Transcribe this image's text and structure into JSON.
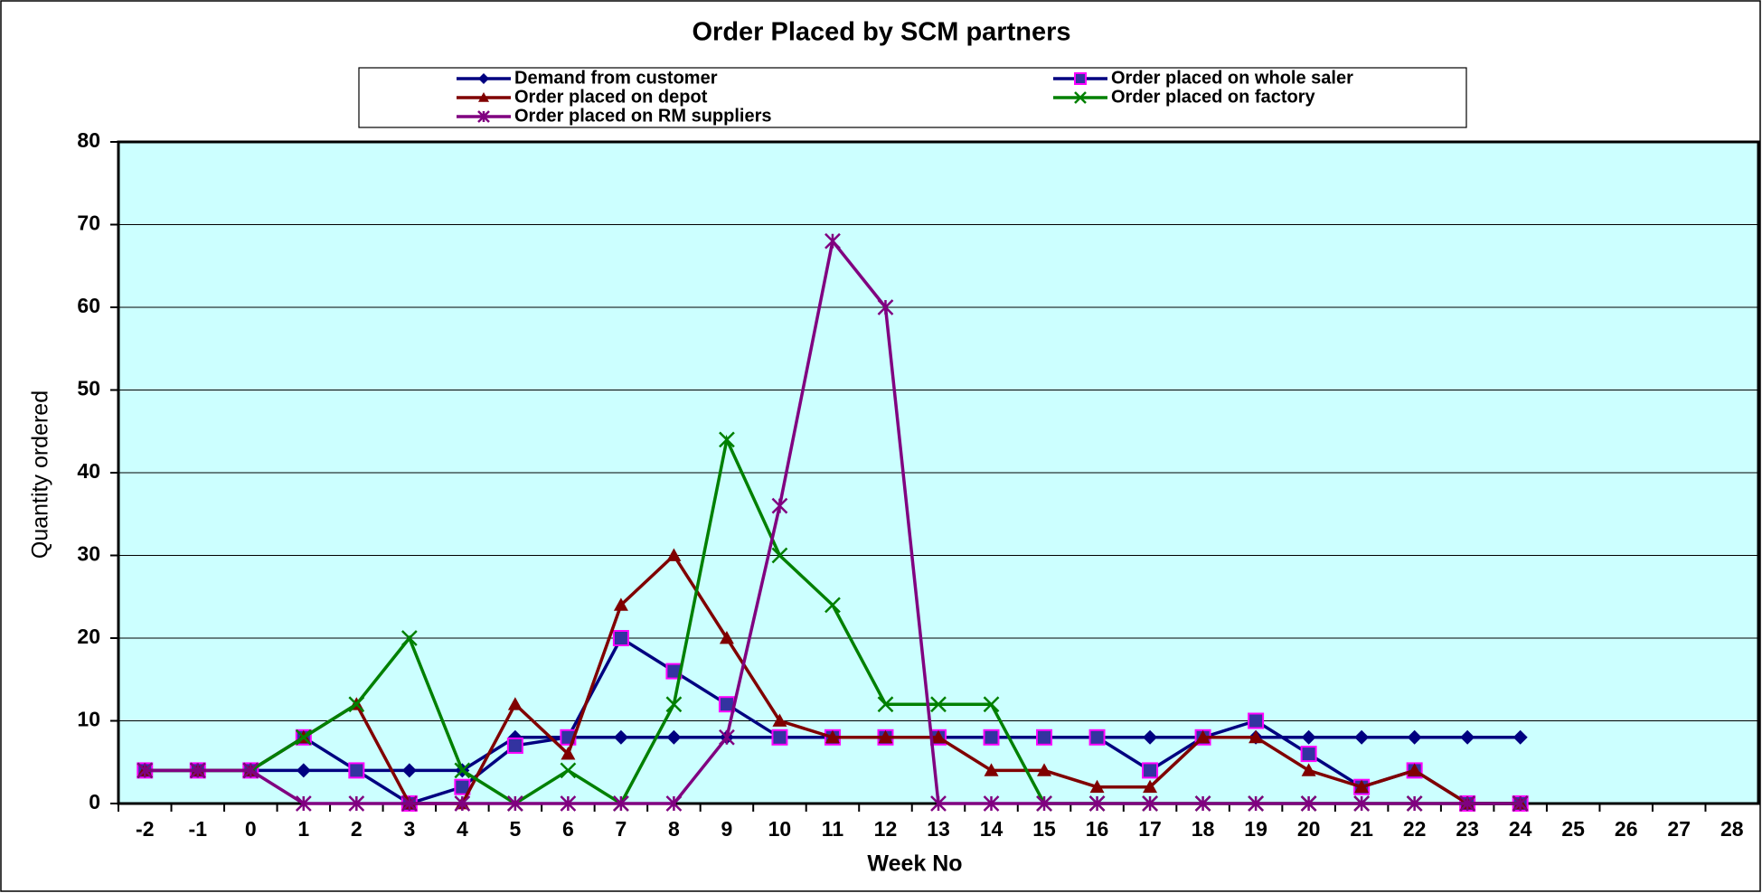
{
  "chart_data": {
    "type": "line",
    "title": "Order Placed by SCM partners",
    "x_label": "Week No",
    "y_label": "Quantity ordered",
    "categories": [
      "-2",
      "-1",
      "0",
      "1",
      "2",
      "3",
      "4",
      "5",
      "6",
      "7",
      "8",
      "9",
      "10",
      "11",
      "12",
      "13",
      "14",
      "15",
      "16",
      "17",
      "18",
      "19",
      "20",
      "21",
      "22",
      "23",
      "24",
      "25",
      "26",
      "27",
      "28"
    ],
    "ylim": [
      0,
      80
    ],
    "yticks": [
      0,
      10,
      20,
      30,
      40,
      50,
      60,
      70,
      80
    ],
    "grid": true,
    "background": "#ccffff",
    "series": [
      {
        "name": "Demand from customer",
        "color": "#000080",
        "marker": "diamond",
        "values": [
          4,
          4,
          4,
          4,
          4,
          4,
          4,
          8,
          8,
          8,
          8,
          8,
          8,
          8,
          8,
          8,
          8,
          8,
          8,
          8,
          8,
          8,
          8,
          8,
          8,
          8,
          8,
          null,
          null,
          null,
          null
        ]
      },
      {
        "name": "Order placed on whole saler",
        "color": "#000080",
        "marker": "square",
        "values": [
          4,
          4,
          4,
          8,
          4,
          0,
          2,
          7,
          8,
          20,
          16,
          12,
          8,
          8,
          8,
          8,
          8,
          8,
          8,
          4,
          8,
          10,
          6,
          2,
          4,
          0,
          0,
          null,
          null,
          null,
          null
        ]
      },
      {
        "name": "Order placed on depot",
        "color": "#800000",
        "marker": "triangle",
        "values": [
          4,
          4,
          4,
          8,
          12,
          0,
          0,
          12,
          6,
          24,
          30,
          20,
          10,
          8,
          8,
          8,
          4,
          4,
          2,
          2,
          8,
          8,
          4,
          2,
          4,
          0,
          0,
          null,
          null,
          null,
          null
        ]
      },
      {
        "name": "Order placed on factory",
        "color": "#008000",
        "marker": "x",
        "values": [
          4,
          4,
          4,
          8,
          12,
          20,
          4,
          0,
          4,
          0,
          12,
          44,
          30,
          24,
          12,
          12,
          12,
          0,
          0,
          0,
          0,
          0,
          0,
          0,
          0,
          0,
          0,
          null,
          null,
          null,
          null
        ]
      },
      {
        "name": "Order placed on RM suppliers",
        "color": "#800080",
        "marker": "star",
        "values": [
          4,
          4,
          4,
          0,
          0,
          0,
          0,
          0,
          0,
          0,
          0,
          8,
          36,
          68,
          60,
          0,
          0,
          0,
          0,
          0,
          0,
          0,
          0,
          0,
          0,
          0,
          0,
          null,
          null,
          null,
          null
        ]
      }
    ]
  }
}
